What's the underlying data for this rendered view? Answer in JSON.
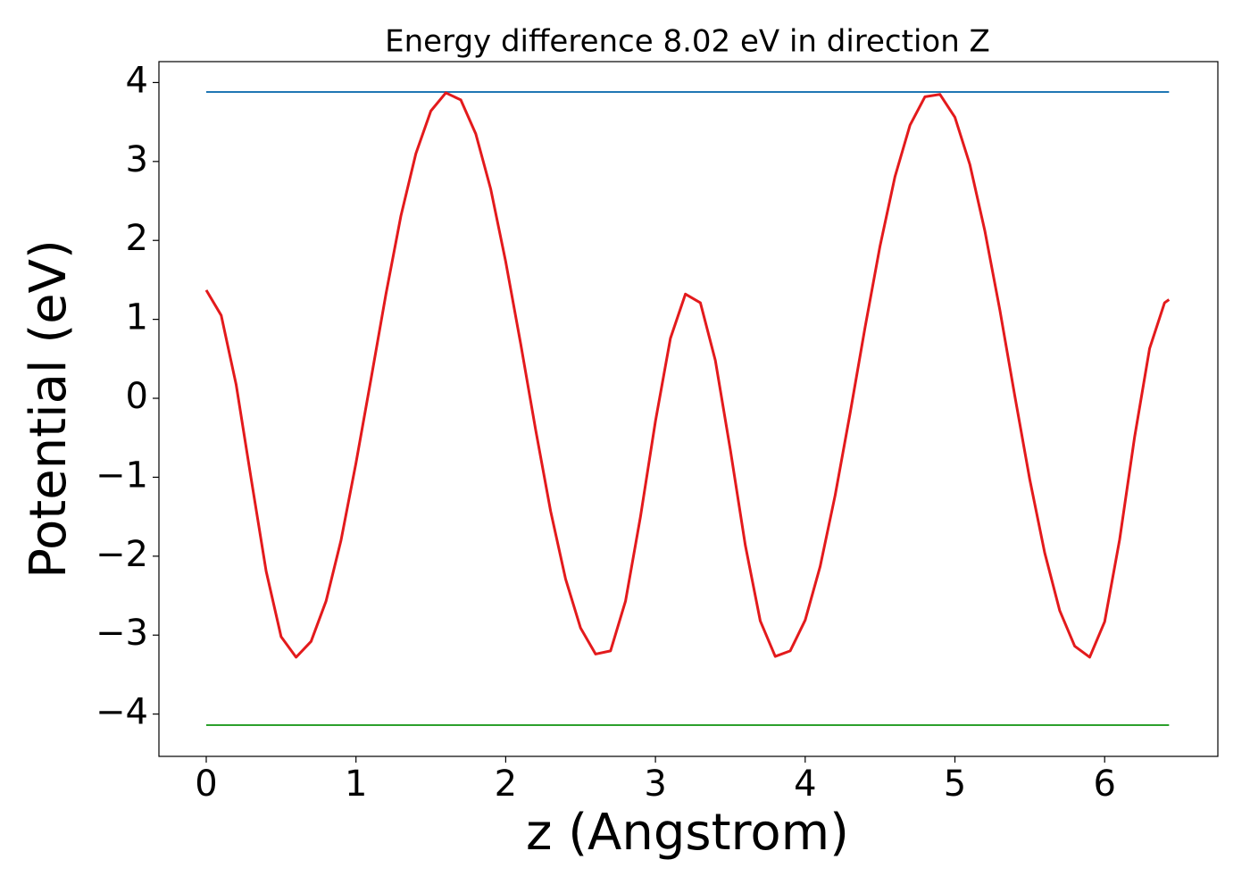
{
  "chart_data": {
    "type": "line",
    "title": "Energy difference 8.02 eV in direction Z",
    "xlabel": "z (Angstrom)",
    "ylabel": "Potential (eV)",
    "x": [
      0,
      0.1,
      0.2,
      0.3,
      0.4,
      0.5,
      0.6,
      0.7,
      0.8,
      0.9,
      1.0,
      1.1,
      1.2,
      1.3,
      1.4,
      1.5,
      1.6,
      1.7,
      1.8,
      1.9,
      2.0,
      2.1,
      2.2,
      2.3,
      2.4,
      2.5,
      2.6,
      2.7,
      2.8,
      2.9,
      3.0,
      3.1,
      3.2,
      3.3,
      3.4,
      3.5,
      3.6,
      3.7,
      3.8,
      3.9,
      4.0,
      4.1,
      4.2,
      4.3,
      4.4,
      4.5,
      4.6,
      4.7,
      4.8,
      4.9,
      5.0,
      5.1,
      5.2,
      5.3,
      5.4,
      5.5,
      5.6,
      5.7,
      5.8,
      5.9,
      6.0,
      6.1,
      6.2,
      6.3,
      6.4,
      6.43
    ],
    "values": [
      1.37,
      1.05,
      0.17,
      -1.02,
      -2.19,
      -3.02,
      -3.28,
      -3.08,
      -2.57,
      -1.8,
      -0.82,
      0.24,
      1.32,
      2.31,
      3.1,
      3.64,
      3.87,
      3.78,
      3.35,
      2.65,
      1.73,
      0.69,
      -0.4,
      -1.43,
      -2.29,
      -2.91,
      -3.24,
      -3.2,
      -2.57,
      -1.5,
      -0.29,
      0.76,
      1.32,
      1.21,
      0.48,
      -0.65,
      -1.86,
      -2.82,
      -3.27,
      -3.2,
      -2.81,
      -2.13,
      -1.23,
      -0.19,
      0.9,
      1.93,
      2.81,
      3.46,
      3.82,
      3.85,
      3.56,
      2.96,
      2.12,
      1.12,
      0.03,
      -1.03,
      -1.96,
      -2.69,
      -3.14,
      -3.28,
      -2.83,
      -1.79,
      -0.49,
      0.63,
      1.21,
      1.25
    ],
    "color": "#e31a1c",
    "hlines": [
      {
        "value": 3.88,
        "color": "#1f77b4"
      },
      {
        "value": -4.14,
        "color": "#2ca02c"
      }
    ],
    "xlim": [
      -0.316,
      6.756
    ],
    "ylim": [
      -4.536,
      4.265
    ],
    "xticks": [
      0,
      1,
      2,
      3,
      4,
      5,
      6
    ],
    "yticks": [
      {
        "value": -4,
        "label": "−4"
      },
      {
        "value": -3,
        "label": "−3"
      },
      {
        "value": -2,
        "label": "−2"
      },
      {
        "value": -1,
        "label": "−1"
      },
      0,
      1,
      2,
      3,
      4
    ],
    "grid": false
  }
}
